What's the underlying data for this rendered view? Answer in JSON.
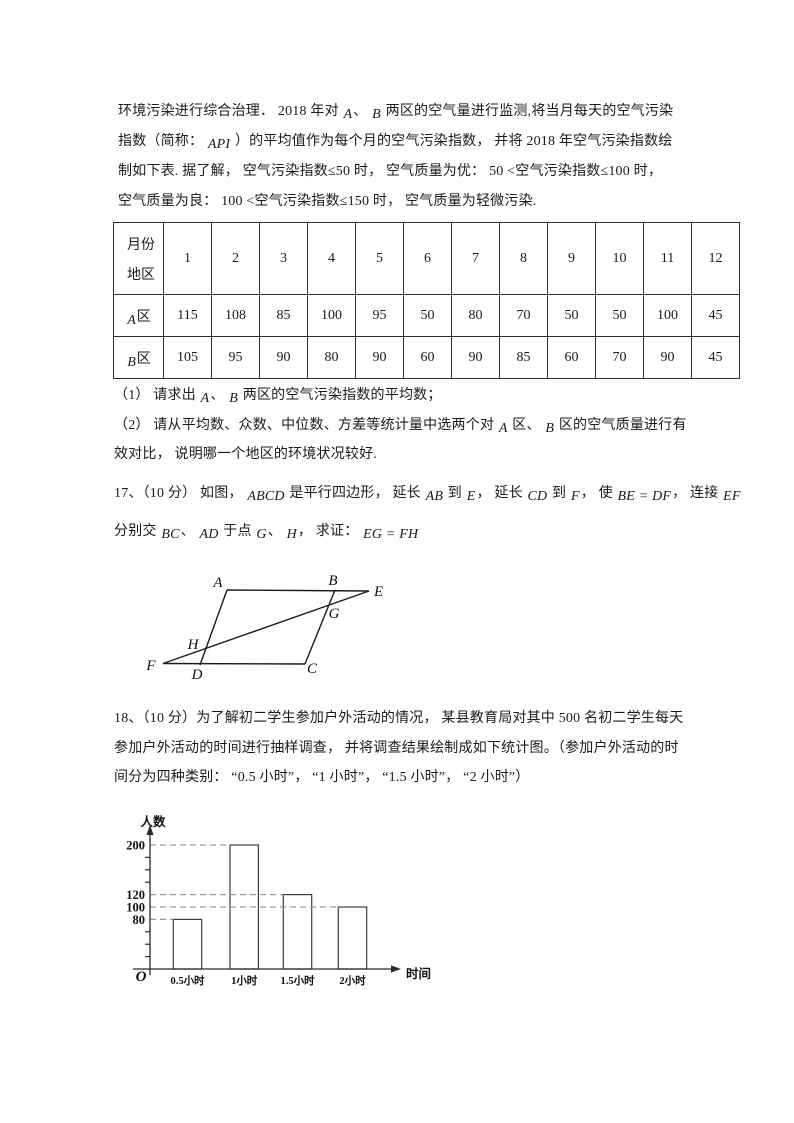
{
  "page": {
    "background": "#ffffff",
    "text_color": "#1b1b1b"
  },
  "intro": {
    "lines": [
      [
        {
          "t": "环境污染进行综合治理． 2018 年对 "
        },
        {
          "t": "A",
          "m": true
        },
        {
          "t": "、 "
        },
        {
          "t": "B",
          "m": true
        },
        {
          "t": " 两区的空气量进行监测,将当月每天的空气污染"
        }
      ],
      [
        {
          "t": "指数（简称： "
        },
        {
          "t": "API",
          "m": true
        },
        {
          "t": " ）的平均值作为每个月的空气污染指数， 并将 2018 年空气污染指数绘"
        }
      ],
      [
        {
          "t": "制如下表. 据了解， 空气污染指数≤50 时， 空气质量为优： 50 <空气污染指数≤100 时，"
        }
      ],
      [
        {
          "t": "空气质量为良： 100 <空气污染指数≤150 时， 空气质量为轻微污染."
        }
      ]
    ]
  },
  "table": {
    "corner_top": "月份",
    "corner_bottom": "地区",
    "months": [
      "1",
      "2",
      "3",
      "4",
      "5",
      "6",
      "7",
      "8",
      "9",
      "10",
      "11",
      "12"
    ],
    "rows": [
      {
        "letter": "A",
        "suffix": "区",
        "values": [
          115,
          108,
          85,
          100,
          95,
          50,
          80,
          70,
          50,
          50,
          100,
          45
        ]
      },
      {
        "letter": "B",
        "suffix": "区",
        "values": [
          105,
          95,
          90,
          80,
          90,
          60,
          90,
          85,
          60,
          70,
          90,
          45
        ]
      }
    ]
  },
  "q16_parts": {
    "lines": [
      [
        {
          "t": "（1） 请求出 "
        },
        {
          "t": "A",
          "m": true
        },
        {
          "t": "、 "
        },
        {
          "t": "B",
          "m": true
        },
        {
          "t": " 两区的空气污染指数的平均数；"
        }
      ],
      [
        {
          "t": "（2） 请从平均数、众数、中位数、方差等统计量中选两个对 "
        },
        {
          "t": "A",
          "m": true
        },
        {
          "t": " 区、 "
        },
        {
          "t": "B",
          "m": true
        },
        {
          "t": " 区的空气质量进行有"
        }
      ],
      [
        {
          "t": "效对比， 说明哪一个地区的环境状况较好."
        }
      ]
    ]
  },
  "q17": {
    "lines": [
      [
        {
          "t": "17、（10 分） 如图， "
        },
        {
          "t": "ABCD",
          "m": true
        },
        {
          "t": " 是平行四边形， 延长 "
        },
        {
          "t": "AB",
          "m": true
        },
        {
          "t": " 到 "
        },
        {
          "t": "E",
          "m": true
        },
        {
          "t": "， 延长 "
        },
        {
          "t": "CD",
          "m": true
        },
        {
          "t": " 到 "
        },
        {
          "t": "F",
          "m": true
        },
        {
          "t": "， 使 "
        },
        {
          "t": "BE = DF",
          "m": true
        },
        {
          "t": "， 连接 "
        },
        {
          "t": "EF",
          "m": true
        }
      ],
      [
        {
          "t": "分别交 "
        },
        {
          "t": "BC",
          "m": true
        },
        {
          "t": "、 "
        },
        {
          "t": "AD",
          "m": true
        },
        {
          "t": " 于点 "
        },
        {
          "t": "G",
          "m": true
        },
        {
          "t": "、 "
        },
        {
          "t": "H",
          "m": true
        },
        {
          "t": "， 求证： "
        },
        {
          "t": "EG = FH",
          "m": true
        }
      ]
    ]
  },
  "figure17": {
    "labels": {
      "A": "A",
      "B": "B",
      "E": "E",
      "G": "G",
      "H": "H",
      "F": "F",
      "D": "D",
      "C": "C"
    }
  },
  "q18": {
    "lines": [
      [
        {
          "t": "18、（10 分）为了解初二学生参加户外活动的情况， 某县教育局对其中 500 名初二学生每天"
        }
      ],
      [
        {
          "t": "参加户外活动的时间进行抽样调查， 并将调查结果绘制成如下统计图。（参加户外活动的时"
        }
      ],
      [
        {
          "t": "间分为四种类别： “0.5 小时”， “1 小时”， “1.5 小时”， “2 小时”）"
        }
      ]
    ]
  },
  "chart_data": {
    "type": "bar",
    "title": "",
    "categories": [
      "0.5小时",
      "1小时",
      "1.5小时",
      "2小时"
    ],
    "values": [
      80,
      200,
      120,
      100
    ],
    "xlabel": "时间",
    "ylabel": "人数",
    "origin_label": "O",
    "ytick_labels": [
      200,
      120,
      100,
      80
    ],
    "minor_tick_values": [
      20,
      40,
      60,
      140,
      160,
      180
    ],
    "ylim": [
      0,
      215
    ],
    "legend": "none",
    "grid": "dashed horizontal guides from y-axis to each bar top",
    "bar_fill": "#ffffff",
    "bar_stroke": "#3f3f3f",
    "guide_color": "#999999",
    "axis_color": "#2a2a2a"
  }
}
